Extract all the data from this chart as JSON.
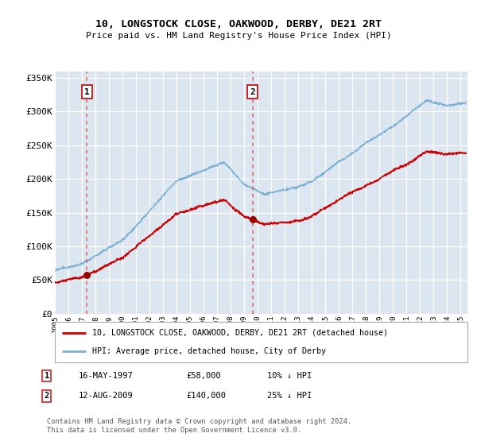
{
  "title": "10, LONGSTOCK CLOSE, OAKWOOD, DERBY, DE21 2RT",
  "subtitle": "Price paid vs. HM Land Registry's House Price Index (HPI)",
  "legend_label_red": "10, LONGSTOCK CLOSE, OAKWOOD, DERBY, DE21 2RT (detached house)",
  "legend_label_blue": "HPI: Average price, detached house, City of Derby",
  "footnote": "Contains HM Land Registry data © Crown copyright and database right 2024.\nThis data is licensed under the Open Government Licence v3.0.",
  "annotation1_date": "16-MAY-1997",
  "annotation1_price": "£58,000",
  "annotation1_hpi": "10% ↓ HPI",
  "annotation2_date": "12-AUG-2009",
  "annotation2_price": "£140,000",
  "annotation2_hpi": "25% ↓ HPI",
  "sale1_x": 1997.37,
  "sale1_y": 58000,
  "sale2_x": 2009.62,
  "sale2_y": 140000,
  "ylim_min": 0,
  "ylim_max": 360000,
  "xlim_min": 1995.0,
  "xlim_max": 2025.5,
  "background_color": "#dce6f1",
  "grid_color": "#ffffff",
  "red_line_color": "#cc0000",
  "blue_line_color": "#7bafd4",
  "dashed_line_color": "#e06060",
  "marker_color": "#990000",
  "box_edge_color": "#cc2222",
  "yticks": [
    0,
    50000,
    100000,
    150000,
    200000,
    250000,
    300000,
    350000
  ],
  "xticks": [
    1995,
    1996,
    1997,
    1998,
    1999,
    2000,
    2001,
    2002,
    2003,
    2004,
    2005,
    2006,
    2007,
    2008,
    2009,
    2010,
    2011,
    2012,
    2013,
    2014,
    2015,
    2016,
    2017,
    2018,
    2019,
    2020,
    2021,
    2022,
    2023,
    2024,
    2025
  ]
}
